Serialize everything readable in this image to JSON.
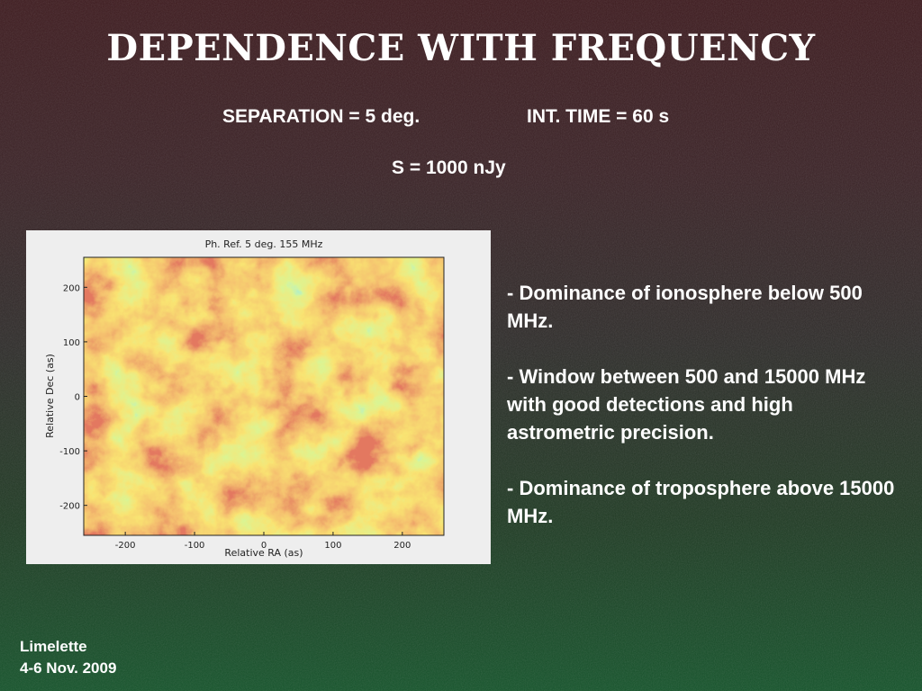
{
  "title": "DEPENDENCE WITH FREQUENCY",
  "params": {
    "separation": "SEPARATION = 5 deg.",
    "int_time": "INT. TIME = 60 s",
    "flux": "S = 1000 nJy"
  },
  "chart_data": {
    "type": "heatmap",
    "title": "Ph. Ref. 5 deg. 155 MHz",
    "xlabel": "Relative RA (as)",
    "ylabel": "Relative Dec (as)",
    "xlim": [
      -260,
      260
    ],
    "ylim": [
      -255,
      255
    ],
    "x_ticks": [
      -200,
      -100,
      0,
      100,
      200
    ],
    "x_tick_labels": [
      "-200",
      "-100",
      "0",
      "100",
      "200"
    ],
    "y_ticks": [
      -200,
      -100,
      0,
      100,
      200
    ],
    "y_tick_labels": [
      "-200",
      "-100",
      "0",
      "100",
      "200"
    ],
    "colormap": [
      "#1f3fb8",
      "#2a9fe6",
      "#39d6c8",
      "#b6e84a",
      "#f2c52b",
      "#e7842a",
      "#c4301e"
    ],
    "grid": false
  },
  "bullets": [
    "- Dominance of ionosphere below 500 MHz.",
    "- Window between 500 and 15000 MHz with good detections and high astrometric precision.",
    "- Dominance of troposphere above 15000 MHz."
  ],
  "footer": {
    "line1": "Limelette",
    "line2": "4-6 Nov. 2009"
  }
}
